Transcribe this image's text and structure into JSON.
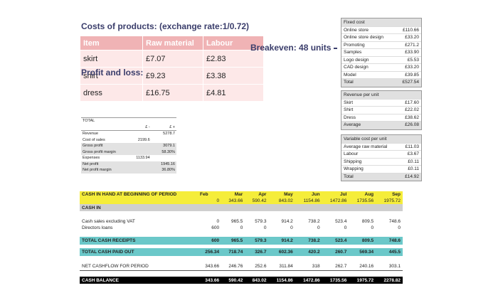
{
  "costs": {
    "title": "Costs of products: (exchange rate:1/0.72)",
    "headers": [
      "Item",
      "Raw material",
      "Labour"
    ],
    "rows": [
      [
        "skirt",
        "£7.07",
        "£2.83"
      ],
      [
        "shirt",
        "£9.23",
        "£3.38"
      ],
      [
        "dress",
        "£16.75",
        "£4.81"
      ]
    ]
  },
  "pl_label": "Profit and loss:",
  "breakeven": "Breakeven: 48 units",
  "pl": {
    "header": [
      "TOTAL",
      "",
      ""
    ],
    "header2": [
      "",
      "£ -",
      "£ +"
    ],
    "rows": [
      [
        "Revenue",
        "",
        "5278.7",
        ""
      ],
      [
        "Cost of sales",
        "2199.6",
        "",
        ""
      ],
      [
        "Gross profit",
        "",
        "3079.1",
        "g"
      ],
      [
        "Gross profit margin",
        "",
        "58.30%",
        "g"
      ],
      [
        "Expenses",
        "1133.94",
        "",
        ""
      ],
      [
        "Net profit",
        "",
        "1945.16",
        "g"
      ],
      [
        "Net profit margin",
        "",
        "36.80%",
        "g"
      ]
    ]
  },
  "fixed": {
    "head": "Fixed cost",
    "rows": [
      [
        "Online store",
        "£110.66"
      ],
      [
        "Online store design",
        "£33.20"
      ],
      [
        "Promoting",
        "£271.2"
      ],
      [
        "Samples",
        "£33.90"
      ],
      [
        "Logo design",
        "£5.53"
      ],
      [
        "CAD design",
        "£33.20"
      ],
      [
        "Model",
        "£39.85"
      ],
      [
        "Total",
        "£527.54"
      ]
    ]
  },
  "revenue": {
    "head": "Revenue per unit",
    "rows": [
      [
        "Skirt",
        "£17.60"
      ],
      [
        "Shirt",
        "£22.02"
      ],
      [
        "Dress",
        "£38.62"
      ],
      [
        "Average",
        "£26.08"
      ]
    ]
  },
  "variable": {
    "head": "Variable cost per unit",
    "rows": [
      [
        "Average raw material",
        "£11.03"
      ],
      [
        "Labour",
        "£3.67"
      ],
      [
        "Shipping",
        "£0.11"
      ],
      [
        "Wrapping",
        "£0.11"
      ],
      [
        "Total",
        "£14.92"
      ]
    ]
  },
  "cashflow": {
    "months": [
      "Feb",
      "Mar",
      "Apr",
      "May",
      "Jun",
      "Jul",
      "Aug",
      "Sep"
    ],
    "opening_label": "CASH IN HAND AT BEGINNING OF PERIOD",
    "opening": [
      "0",
      "343.66",
      "590.42",
      "843.02",
      "1154.86",
      "1472.86",
      "1735.56",
      "1975.72"
    ],
    "cash_in_label": "CASH IN",
    "sales_label": "Cash sales excluding VAT",
    "sales": [
      "0",
      "965.5",
      "579.3",
      "914.2",
      "738.2",
      "523.4",
      "809.5",
      "748.6"
    ],
    "loans_label": "Directors loans",
    "loans": [
      "600",
      "0",
      "0",
      "0",
      "0",
      "0",
      "0",
      "0"
    ],
    "receipts_label": "TOTAL CASH RECEIPTS",
    "receipts": [
      "600",
      "965.5",
      "579.3",
      "914.2",
      "738.2",
      "523.4",
      "809.5",
      "748.6"
    ],
    "paid_label": "TOTAL CASH PAID OUT",
    "paid": [
      "256.34",
      "718.74",
      "326.7",
      "602.36",
      "420.2",
      "260.7",
      "569.34",
      "445.5"
    ],
    "net_label": "NET CASHFLOW FOR PERIOD",
    "net": [
      "343.66",
      "246.76",
      "252.6",
      "311.84",
      "318",
      "262.7",
      "240.16",
      "303.1"
    ],
    "balance_label": "CASH BALANCE",
    "balance": [
      "343.66",
      "590.42",
      "843.02",
      "1154.86",
      "1472.86",
      "1735.56",
      "1975.72",
      "2278.82"
    ]
  }
}
